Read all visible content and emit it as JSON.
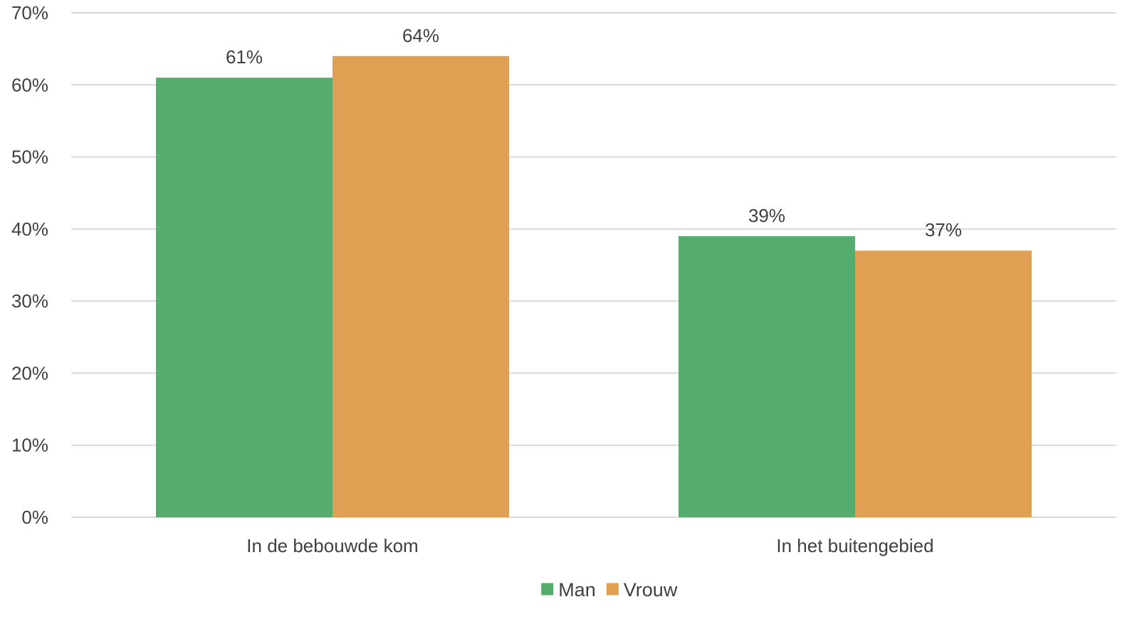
{
  "chart_data": {
    "type": "bar",
    "categories": [
      "In de bebouwde kom",
      "In het buitengebied"
    ],
    "series": [
      {
        "name": "Man",
        "values": [
          61,
          39
        ],
        "labels": [
          "61%",
          "39%"
        ],
        "color": "#55ac6e"
      },
      {
        "name": "Vrouw",
        "values": [
          64,
          37
        ],
        "labels": [
          "64%",
          "37%"
        ],
        "color": "#dfa053"
      }
    ],
    "ylim": [
      0,
      70
    ],
    "yticks": [
      0,
      10,
      20,
      30,
      40,
      50,
      60,
      70
    ],
    "ytick_labels": [
      "0%",
      "10%",
      "20%",
      "30%",
      "40%",
      "50%",
      "60%",
      "70%"
    ],
    "grid": true,
    "legend": "bottom-center",
    "gridline_color": "#d9d9d9"
  }
}
